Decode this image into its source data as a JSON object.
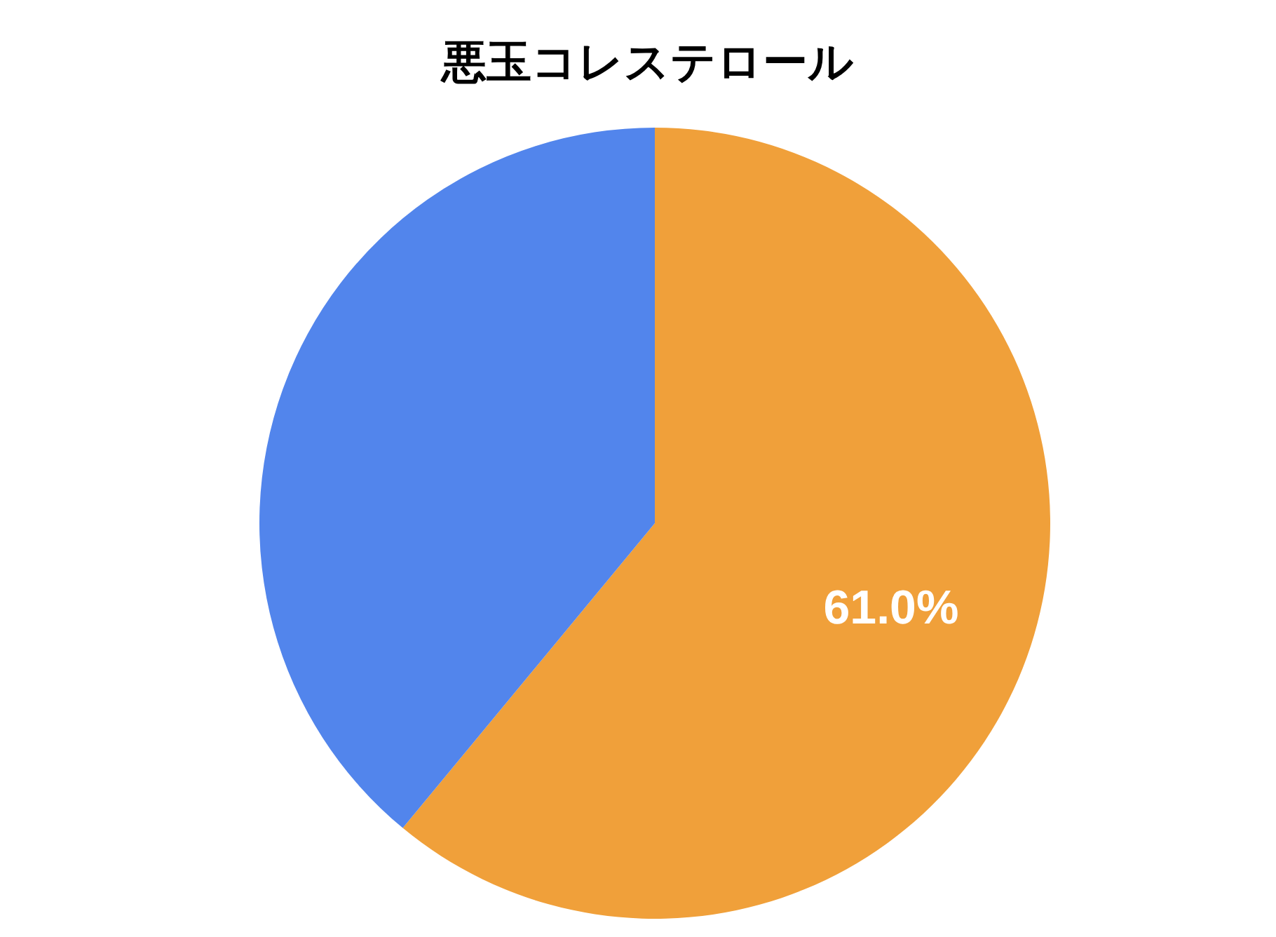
{
  "chart_data": {
    "type": "pie",
    "title": "悪玉コレステロール",
    "categories": [
      null,
      null
    ],
    "values": [
      61.0,
      39.0
    ],
    "colors": [
      "#f0a03a",
      "#5285ec"
    ],
    "value_labels": [
      "61.0%",
      null
    ]
  }
}
